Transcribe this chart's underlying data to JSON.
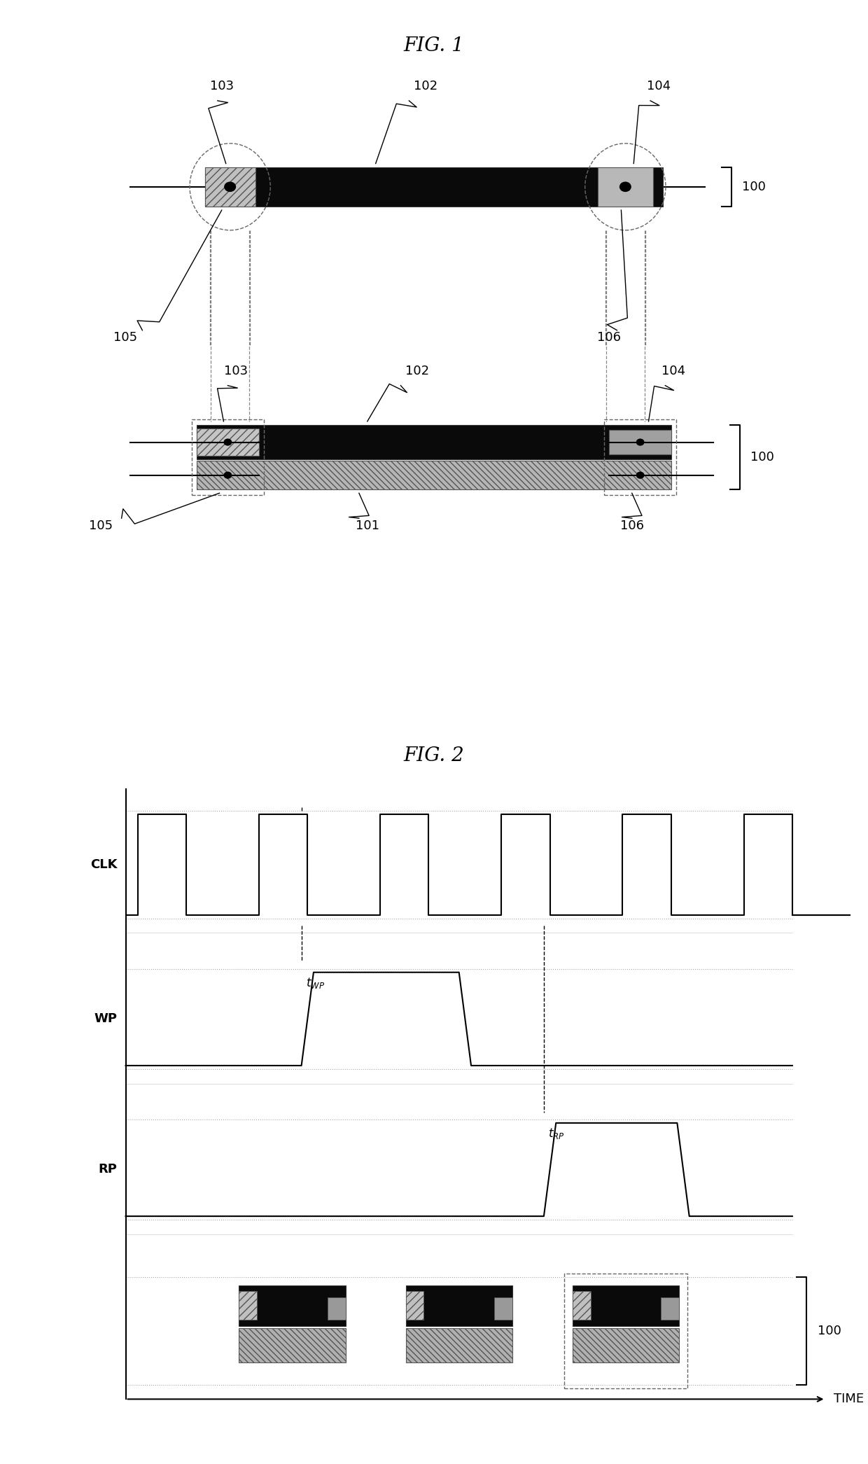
{
  "fig1_title": "FIG. 1",
  "fig2_title": "FIG. 2",
  "label_100": "100",
  "label_101": "101",
  "label_102": "102",
  "label_103": "103",
  "label_104": "104",
  "label_105": "105",
  "label_106": "106",
  "label_clk": "CLK",
  "label_wp": "WP",
  "label_rp": "RP",
  "label_time": "TIME",
  "label_twp": "$t_{WP}$",
  "label_trp": "$t_{RP}$",
  "bg_color": "#ffffff",
  "bar_black": "#0a0a0a",
  "bar_gray": "#b0b0b0",
  "bar_dark_gray": "#888888"
}
